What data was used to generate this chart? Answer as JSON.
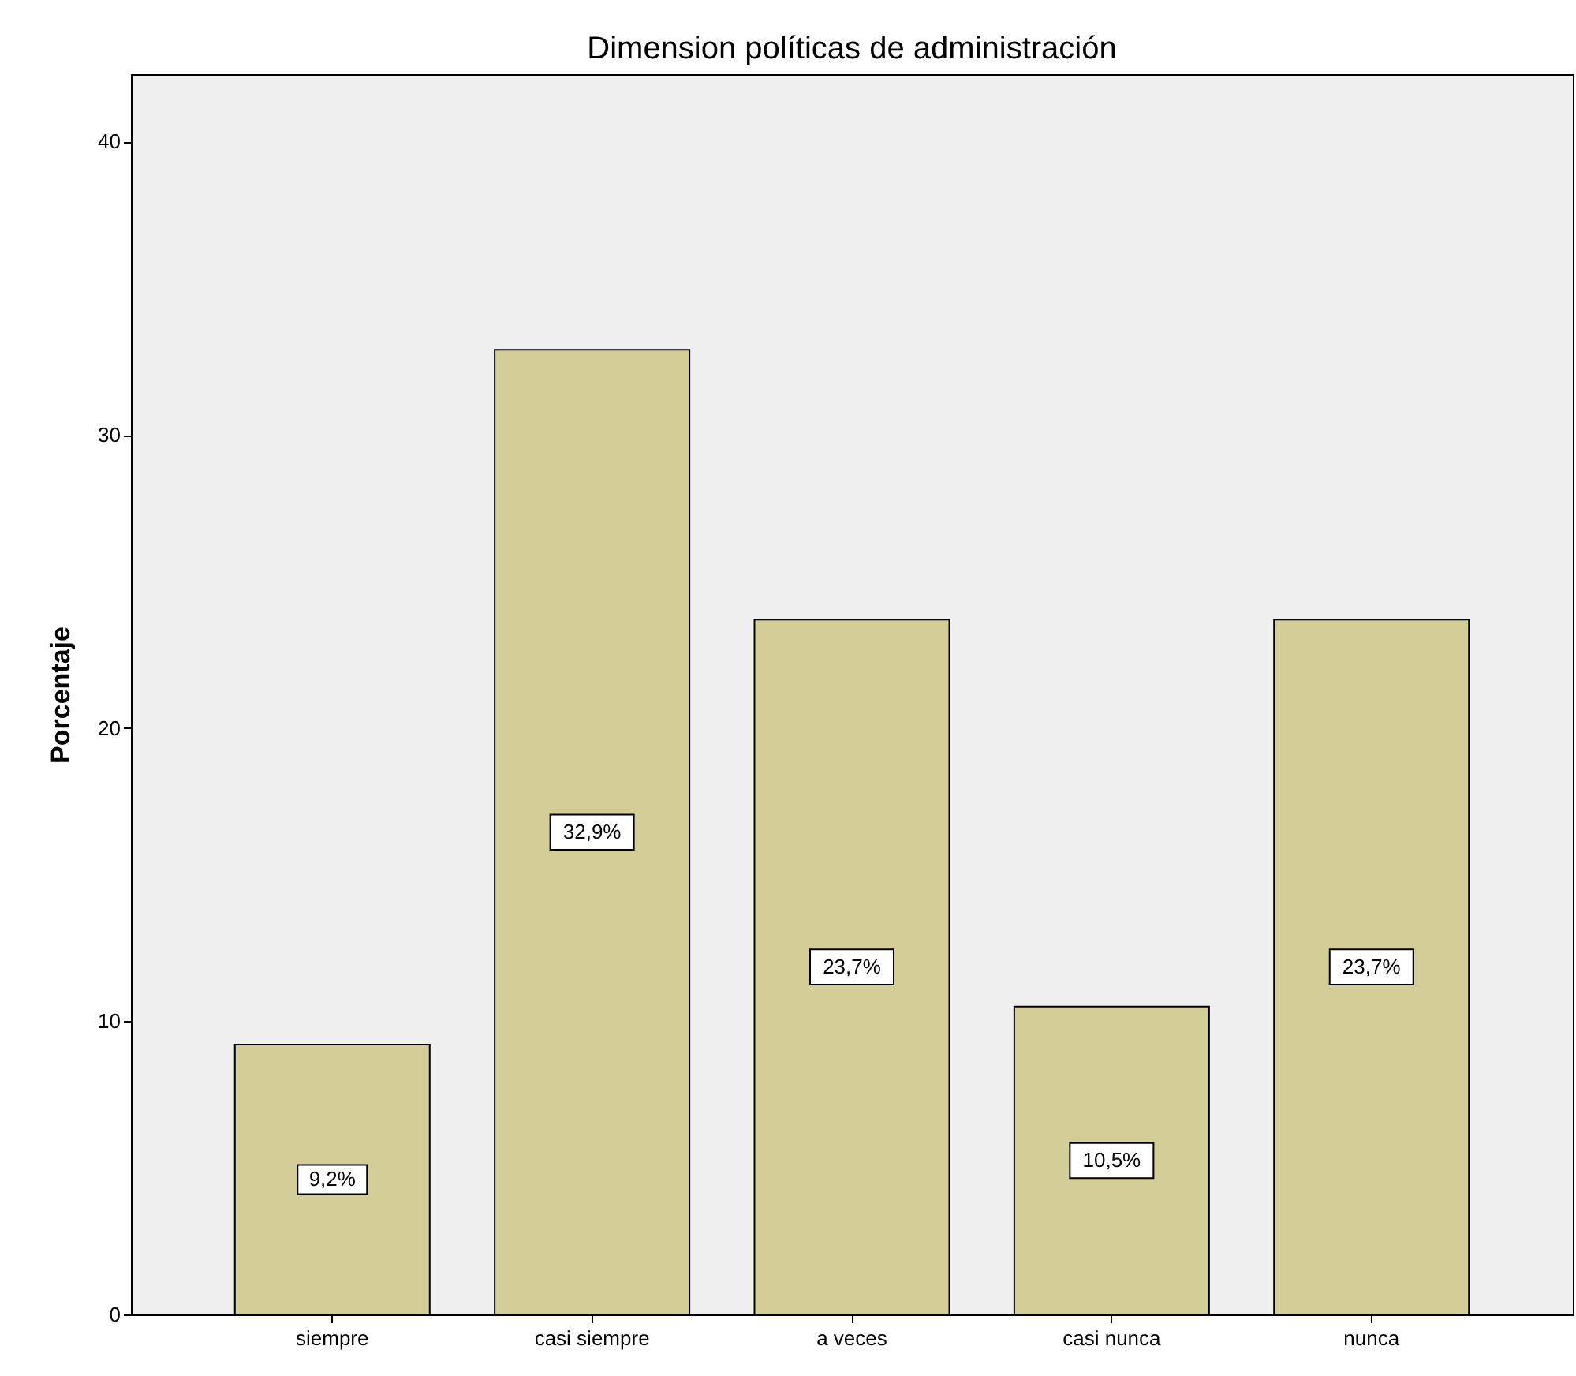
{
  "chart_data": {
    "type": "bar",
    "title": "Dimension políticas de administración",
    "ylabel": "Porcentaje",
    "categories": [
      "siempre",
      "casi siempre",
      "a veces",
      "casi nunca",
      "nunca"
    ],
    "values": [
      9.2,
      32.9,
      23.7,
      10.5,
      23.7
    ],
    "value_labels": [
      "9,2%",
      "32,9%",
      "23,7%",
      "10,5%",
      "23,7%"
    ],
    "color": "#d3ce97",
    "ylim": [
      0,
      42.3
    ],
    "yticks": [
      0,
      10,
      20,
      30,
      40
    ],
    "grid": false
  }
}
